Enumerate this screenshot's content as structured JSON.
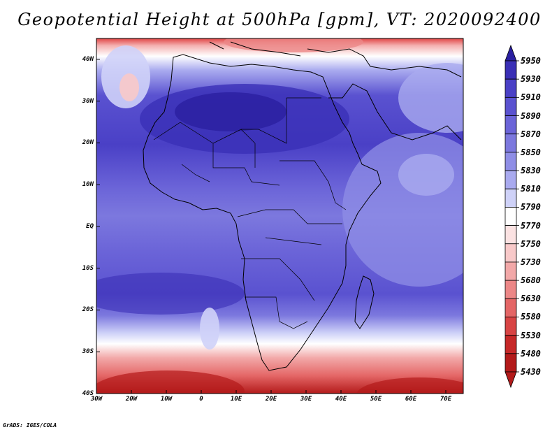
{
  "title": "Geopotential Height at 500hPa [gpm], VT: 2020092400",
  "credit": "GrADS: IGES/COLA",
  "map": {
    "lat_labels": [
      "40N",
      "30N",
      "20N",
      "10N",
      "EQ",
      "10S",
      "20S",
      "30S",
      "40S"
    ],
    "lon_labels": [
      "30W",
      "20W",
      "10W",
      "0",
      "10E",
      "20E",
      "30E",
      "40E",
      "50E",
      "60E",
      "70E"
    ],
    "extent": {
      "lon_min": -30,
      "lon_max": 75,
      "lat_min": -40,
      "lat_max": 45
    }
  },
  "colorbar": {
    "levels": [
      "5950",
      "5930",
      "5910",
      "5890",
      "5870",
      "5850",
      "5830",
      "5810",
      "5790",
      "5770",
      "5750",
      "5730",
      "5680",
      "5630",
      "5580",
      "5530",
      "5480",
      "5430"
    ],
    "colors": [
      "#2a1fa0",
      "#3a2fb6",
      "#4a40c6",
      "#5a52d0",
      "#6b64d8",
      "#7c78de",
      "#8f8ee6",
      "#a9aaef",
      "#cfd2f8",
      "#ffffff",
      "#fbe2e2",
      "#f8c9c9",
      "#f2a8a8",
      "#ec8787",
      "#e46666",
      "#d84444",
      "#c62828",
      "#b31a1a"
    ]
  }
}
